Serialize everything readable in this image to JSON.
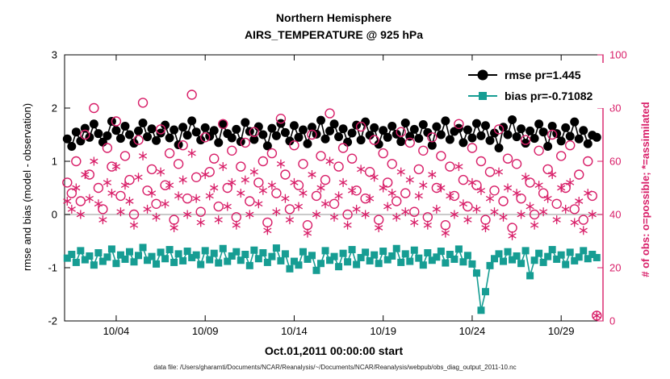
{
  "chart": {
    "title_line1": "Northern Hemisphere",
    "title_line2": "AIRS_TEMPERATURE @ 925 hPa",
    "xlabel": "Oct.01,2011 00:00:00 start",
    "ylabel_left": "rmse and bias (model - observation)",
    "ylabel_right": "# of obs: o=possible; *=assimilated",
    "caption": "data file: /Users/gharamti/Documents/NCAR/Reanalysis/~/Documents/NCAR/Reanalysis/webpub/obs_diag_output_2011-10.nc",
    "colors": {
      "rmse": "#000000",
      "bias": "#169d93",
      "obs": "#d81e68",
      "zero_line": "#b8b8b8"
    },
    "legend": {
      "items": [
        {
          "label": "rmse pr=1.445",
          "marker": "filled-circle"
        },
        {
          "label": "bias pr=-0.71082",
          "marker": "filled-square"
        }
      ]
    }
  },
  "chart_data": {
    "type": "line",
    "title": "Northern Hemisphere / AIRS_TEMPERATURE @ 925 hPa",
    "xlabel": "Oct.01,2011 00:00:00 start",
    "ylabel_left": "rmse and bias (model - observation)",
    "ylabel_right": "# of obs: o=possible; *=assimilated",
    "xlim": [
      1.1,
      31.35
    ],
    "ylim_left": [
      -2,
      3
    ],
    "ylim_right": [
      0,
      100
    ],
    "x_ticks": [
      4,
      9,
      14,
      19,
      24,
      29
    ],
    "x_tick_labels": [
      "10/04",
      "10/09",
      "10/14",
      "10/19",
      "10/24",
      "10/29"
    ],
    "y_left_ticks": [
      -2,
      -1,
      0,
      1,
      2,
      3
    ],
    "y_right_ticks": [
      0,
      20,
      40,
      60,
      80,
      100
    ],
    "grid": false,
    "zero_line": 0,
    "legend_position": "top-right-inside",
    "x_start": 1.25,
    "x_step": 0.25,
    "series": [
      {
        "name": "rmse pr=1.445",
        "axis": "left",
        "marker": "filled-circle",
        "values": [
          1.42,
          1.28,
          1.55,
          1.38,
          1.62,
          1.45,
          1.7,
          1.52,
          1.36,
          1.48,
          1.75,
          1.58,
          1.43,
          1.66,
          1.5,
          1.34,
          1.57,
          1.72,
          1.46,
          1.61,
          1.39,
          1.53,
          1.68,
          1.44,
          1.59,
          1.31,
          1.64,
          1.49,
          1.76,
          1.55,
          1.4,
          1.63,
          1.47,
          1.58,
          1.35,
          1.69,
          1.52,
          1.44,
          1.6,
          1.37,
          1.73,
          1.56,
          1.41,
          1.65,
          1.5,
          1.29,
          1.62,
          1.48,
          1.71,
          1.54,
          1.38,
          1.67,
          1.45,
          1.59,
          1.33,
          1.64,
          1.51,
          1.77,
          1.42,
          1.57,
          1.7,
          1.46,
          1.61,
          1.36,
          1.53,
          1.68,
          1.4,
          1.74,
          1.49,
          1.63,
          1.32,
          1.58,
          1.45,
          1.66,
          1.51,
          1.37,
          1.72,
          1.47,
          1.6,
          1.43,
          1.69,
          1.54,
          1.3,
          1.65,
          1.5,
          1.76,
          1.41,
          1.56,
          1.62,
          1.35,
          1.59,
          1.44,
          1.71,
          1.48,
          1.67,
          1.39,
          1.53,
          1.25,
          1.64,
          1.5,
          1.78,
          1.46,
          1.61,
          1.34,
          1.57,
          1.43,
          1.7,
          1.55,
          1.28,
          1.66,
          1.52,
          1.38,
          1.63,
          1.47,
          1.74,
          1.42,
          1.58,
          1.33,
          1.49,
          1.45
        ]
      },
      {
        "name": "bias pr=-0.71082",
        "axis": "left",
        "marker": "filled-square",
        "values": [
          -0.82,
          -0.75,
          -0.9,
          -0.68,
          -0.85,
          -0.78,
          -0.95,
          -0.72,
          -0.88,
          -0.8,
          -0.65,
          -0.92,
          -0.76,
          -0.84,
          -0.7,
          -0.89,
          -0.77,
          -0.62,
          -0.86,
          -0.79,
          -0.93,
          -0.71,
          -0.83,
          -0.66,
          -0.9,
          -0.74,
          -0.87,
          -0.69,
          -0.81,
          -0.76,
          -0.94,
          -0.68,
          -0.85,
          -0.73,
          -0.91,
          -0.64,
          -0.88,
          -0.78,
          -0.7,
          -0.86,
          -0.75,
          -0.96,
          -0.67,
          -0.83,
          -0.72,
          -0.9,
          -0.79,
          -0.63,
          -0.87,
          -0.74,
          -1.02,
          -0.88,
          -0.95,
          -0.7,
          -0.84,
          -0.77,
          -1.05,
          -0.92,
          -0.68,
          -0.86,
          -0.79,
          -0.98,
          -0.73,
          -0.89,
          -0.66,
          -0.94,
          -0.81,
          -0.71,
          -0.87,
          -0.76,
          -0.92,
          -0.69,
          -0.85,
          -0.78,
          -0.64,
          -0.9,
          -0.74,
          -0.88,
          -0.67,
          -0.82,
          -0.95,
          -0.72,
          -0.86,
          -0.8,
          -0.69,
          -0.91,
          -0.75,
          -0.84,
          -0.65,
          -0.89,
          -0.77,
          -0.93,
          -1.1,
          -1.8,
          -1.45,
          -0.96,
          -0.83,
          -0.74,
          -0.88,
          -0.7,
          -0.85,
          -0.78,
          -0.92,
          -0.68,
          -1.15,
          -0.86,
          -0.73,
          -0.9,
          -0.79,
          -0.66,
          -0.84,
          -0.76,
          -0.94,
          -0.71,
          -0.87,
          -0.8,
          -0.68,
          -0.83,
          -0.75,
          -0.81
        ]
      },
      {
        "name": "# of obs possible",
        "axis": "right",
        "marker": "open-circle",
        "values": [
          52,
          48,
          60,
          45,
          70,
          55,
          80,
          50,
          42,
          65,
          58,
          75,
          47,
          62,
          53,
          40,
          68,
          82,
          49,
          57,
          44,
          72,
          51,
          63,
          38,
          59,
          66,
          46,
          85,
          54,
          41,
          69,
          56,
          61,
          43,
          74,
          50,
          64,
          39,
          58,
          67,
          45,
          71,
          52,
          60,
          37,
          63,
          48,
          76,
          55,
          42,
          66,
          51,
          59,
          36,
          70,
          47,
          62,
          53,
          78,
          44,
          58,
          65,
          40,
          61,
          49,
          73,
          46,
          56,
          68,
          38,
          63,
          52,
          59,
          45,
          71,
          48,
          67,
          41,
          57,
          64,
          39,
          69,
          50,
          62,
          36,
          58,
          47,
          74,
          53,
          43,
          65,
          51,
          60,
          38,
          56,
          49,
          72,
          45,
          61,
          35,
          59,
          46,
          68,
          52,
          40,
          64,
          48,
          57,
          70,
          44,
          62,
          50,
          66,
          42,
          55,
          38,
          60,
          47,
          2
        ]
      },
      {
        "name": "# of obs assimilated",
        "axis": "right",
        "marker": "asterisk",
        "values": [
          45,
          42,
          50,
          40,
          55,
          46,
          60,
          44,
          38,
          52,
          48,
          58,
          41,
          51,
          45,
          36,
          54,
          62,
          42,
          48,
          39,
          56,
          44,
          51,
          35,
          47,
          53,
          40,
          63,
          46,
          37,
          55,
          47,
          50,
          38,
          58,
          43,
          52,
          36,
          48,
          53,
          40,
          56,
          44,
          49,
          34,
          51,
          41,
          59,
          46,
          38,
          52,
          43,
          48,
          33,
          55,
          40,
          50,
          44,
          60,
          39,
          47,
          52,
          36,
          49,
          42,
          57,
          40,
          46,
          54,
          35,
          50,
          43,
          48,
          39,
          56,
          41,
          53,
          37,
          47,
          51,
          36,
          55,
          42,
          50,
          33,
          47,
          40,
          58,
          44,
          38,
          52,
          42,
          49,
          35,
          46,
          41,
          56,
          39,
          50,
          32,
          48,
          40,
          54,
          43,
          36,
          51,
          41,
          46,
          55,
          38,
          50,
          42,
          52,
          37,
          45,
          34,
          48,
          40,
          2
        ]
      }
    ]
  }
}
